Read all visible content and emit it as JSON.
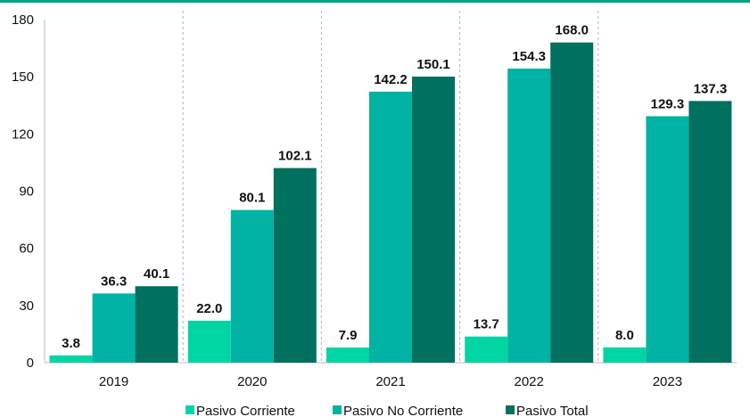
{
  "chart_data": {
    "type": "bar",
    "categories": [
      "2019",
      "2020",
      "2021",
      "2022",
      "2023"
    ],
    "series": [
      {
        "name": "Pasivo Corriente",
        "values": [
          3.8,
          22.0,
          7.9,
          13.7,
          8.0
        ],
        "color": "#00d6a3"
      },
      {
        "name": "Pasivo No Corriente",
        "values": [
          36.3,
          80.1,
          142.2,
          154.3,
          129.3
        ],
        "color": "#00b3a4"
      },
      {
        "name": "Pasivo Total",
        "values": [
          40.1,
          102.1,
          150.1,
          168.0,
          137.3
        ],
        "color": "#00705f"
      }
    ],
    "data_labels": [
      [
        "3.8",
        "22.0",
        "7.9",
        "13.7",
        "8.0"
      ],
      [
        "36.3",
        "80.1",
        "142.2",
        "154.3",
        "129.3"
      ],
      [
        "40.1",
        "102.1",
        "150.1",
        "168.0",
        "137.3"
      ]
    ],
    "ylim": [
      0,
      180
    ],
    "yticks": [
      "0",
      "30",
      "60",
      "90",
      "120",
      "150",
      "180"
    ],
    "grid": "vertical dashed separators between categories",
    "legend_position": "bottom",
    "top_rule_color": "#00a38a"
  }
}
